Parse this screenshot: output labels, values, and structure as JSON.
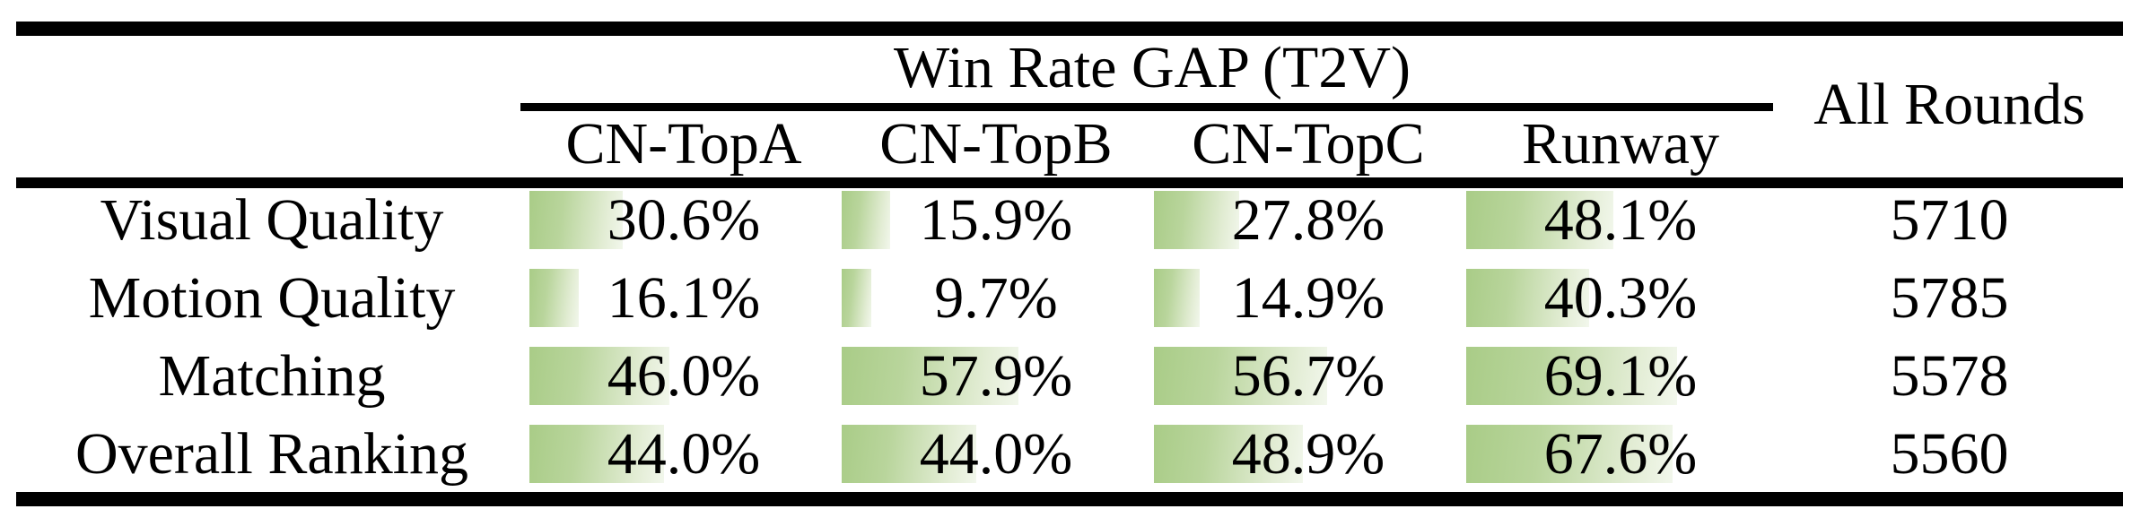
{
  "table": {
    "title": "Win Rate GAP (T2V)",
    "all_rounds_label": "All Rounds",
    "columns": [
      "CN-TopA",
      "CN-TopB",
      "CN-TopC",
      "Runway"
    ],
    "rows": [
      {
        "label": "Visual Quality",
        "cells": [
          {
            "pct": 30.6,
            "text": "30.6%"
          },
          {
            "pct": 15.9,
            "text": "15.9%"
          },
          {
            "pct": 27.8,
            "text": "27.8%"
          },
          {
            "pct": 48.1,
            "text": "48.1%"
          }
        ],
        "all_rounds": "5710"
      },
      {
        "label": "Motion Quality",
        "cells": [
          {
            "pct": 16.1,
            "text": "16.1%"
          },
          {
            "pct": 9.7,
            "text": "9.7%"
          },
          {
            "pct": 14.9,
            "text": "14.9%"
          },
          {
            "pct": 40.3,
            "text": "40.3%"
          }
        ],
        "all_rounds": "5785"
      },
      {
        "label": "Matching",
        "cells": [
          {
            "pct": 46.0,
            "text": "46.0%"
          },
          {
            "pct": 57.9,
            "text": "57.9%"
          },
          {
            "pct": 56.7,
            "text": "56.7%"
          },
          {
            "pct": 69.1,
            "text": "69.1%"
          }
        ],
        "all_rounds": "5578"
      },
      {
        "label": "Overall Ranking",
        "cells": [
          {
            "pct": 44.0,
            "text": "44.0%"
          },
          {
            "pct": 44.0,
            "text": "44.0%"
          },
          {
            "pct": 48.9,
            "text": "48.9%"
          },
          {
            "pct": 67.6,
            "text": "67.6%"
          }
        ],
        "all_rounds": "5560"
      }
    ],
    "colors": {
      "bar_green_dark": "#a9cc87",
      "bar_green": "#b9d59c",
      "bar_fade": "#f2f7ec",
      "rule_black": "#000000"
    }
  }
}
